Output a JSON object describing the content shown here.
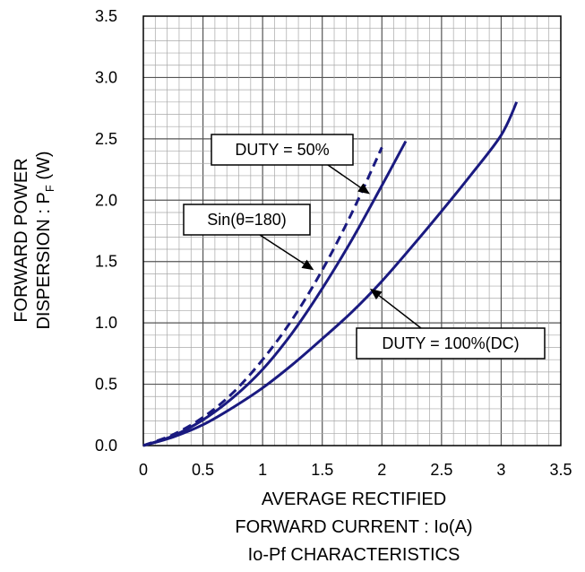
{
  "chart_data": {
    "type": "line",
    "title": "Io-Pf CHARACTERISTICS",
    "xlabel_lines": [
      "AVERAGE RECTIFIED",
      "FORWARD CURRENT : Io(A)"
    ],
    "ylabel_lines": [
      "FORWARD POWER",
      "DISPERSION : P",
      "F",
      " (W)"
    ],
    "xlim": [
      0,
      3.5
    ],
    "ylim": [
      0,
      3.5
    ],
    "x_ticks": [
      "0",
      "0.5",
      "1",
      "1.5",
      "2",
      "2.5",
      "3",
      "3.5"
    ],
    "y_ticks": [
      "0.0",
      "0.5",
      "1.0",
      "1.5",
      "2.0",
      "2.5",
      "3.0",
      "3.5"
    ],
    "grid": true,
    "series": [
      {
        "name": "Sin(θ=180)",
        "color": "#1a1a80",
        "dashed": true,
        "x": [
          0,
          0.25,
          0.5,
          0.75,
          1.0,
          1.25,
          1.5,
          1.75,
          2.0
        ],
        "y": [
          0,
          0.09,
          0.23,
          0.43,
          0.7,
          1.03,
          1.43,
          1.9,
          2.43
        ]
      },
      {
        "name": "DUTY = 50%",
        "color": "#1a1a80",
        "dashed": false,
        "x": [
          0,
          0.25,
          0.5,
          0.75,
          1.0,
          1.25,
          1.5,
          1.75,
          2.0,
          2.2
        ],
        "y": [
          0,
          0.08,
          0.21,
          0.39,
          0.62,
          0.92,
          1.28,
          1.68,
          2.12,
          2.48
        ]
      },
      {
        "name": "DUTY = 100%(DC)",
        "color": "#1a1a80",
        "dashed": false,
        "x": [
          0,
          0.25,
          0.5,
          0.75,
          1.0,
          1.25,
          1.5,
          1.75,
          2.0,
          2.25,
          2.5,
          2.75,
          3.0,
          3.13
        ],
        "y": [
          0,
          0.07,
          0.17,
          0.31,
          0.47,
          0.66,
          0.87,
          1.09,
          1.34,
          1.62,
          1.91,
          2.21,
          2.53,
          2.8
        ]
      }
    ],
    "annotations": [
      {
        "text": "DUTY = 50%",
        "target": [
          1.9,
          2.05
        ]
      },
      {
        "text": "Sin(θ=180)",
        "target": [
          1.43,
          1.43
        ]
      },
      {
        "text": "DUTY = 100%(DC)",
        "target": [
          1.9,
          1.28
        ]
      }
    ]
  }
}
